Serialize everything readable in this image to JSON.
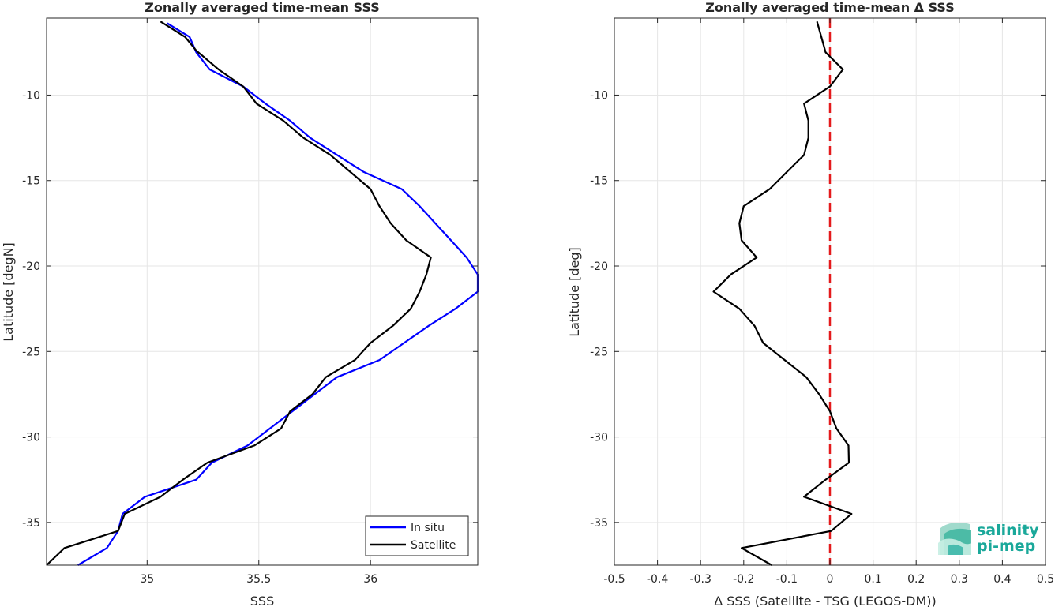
{
  "chart_data": [
    {
      "type": "line",
      "title": "Zonally averaged time-mean SSS",
      "xlabel": "SSS",
      "ylabel": "Latitude [degN]",
      "xlim": [
        34.55,
        36.48
      ],
      "ylim": [
        -37.5,
        -5.5
      ],
      "xticks": [
        35,
        35.5,
        36
      ],
      "xtick_labels": [
        "35",
        "35.5",
        "36"
      ],
      "yticks": [
        -35,
        -30,
        -25,
        -20,
        -15,
        -10
      ],
      "ytick_labels": [
        "-35",
        "-30",
        "-25",
        "-20",
        "-15",
        "-10"
      ],
      "grid": true,
      "legend_position": "bottom-right",
      "series": [
        {
          "name": "In situ",
          "color": "#0000ff",
          "points": [
            [
              35.09,
              -5.8
            ],
            [
              35.19,
              -6.6
            ],
            [
              35.22,
              -7.5
            ],
            [
              35.28,
              -8.5
            ],
            [
              35.43,
              -9.5
            ],
            [
              35.53,
              -10.5
            ],
            [
              35.64,
              -11.5
            ],
            [
              35.73,
              -12.5
            ],
            [
              35.85,
              -13.5
            ],
            [
              35.97,
              -14.5
            ],
            [
              36.14,
              -15.5
            ],
            [
              36.22,
              -16.5
            ],
            [
              36.29,
              -17.5
            ],
            [
              36.36,
              -18.5
            ],
            [
              36.43,
              -19.5
            ],
            [
              36.48,
              -20.5
            ],
            [
              36.48,
              -21.5
            ],
            [
              36.38,
              -22.5
            ],
            [
              36.26,
              -23.5
            ],
            [
              36.15,
              -24.5
            ],
            [
              36.04,
              -25.5
            ],
            [
              35.85,
              -26.5
            ],
            [
              35.75,
              -27.5
            ],
            [
              35.65,
              -28.5
            ],
            [
              35.55,
              -29.5
            ],
            [
              35.45,
              -30.5
            ],
            [
              35.29,
              -31.5
            ],
            [
              35.22,
              -32.5
            ],
            [
              34.99,
              -33.5
            ],
            [
              34.89,
              -34.5
            ],
            [
              34.87,
              -35.5
            ],
            [
              34.82,
              -36.5
            ],
            [
              34.69,
              -37.5
            ]
          ]
        },
        {
          "name": "Satellite",
          "color": "#000000",
          "points": [
            [
              35.06,
              -5.7
            ],
            [
              35.17,
              -6.6
            ],
            [
              35.22,
              -7.4
            ],
            [
              35.32,
              -8.5
            ],
            [
              35.43,
              -9.5
            ],
            [
              35.49,
              -10.5
            ],
            [
              35.61,
              -11.5
            ],
            [
              35.7,
              -12.5
            ],
            [
              35.82,
              -13.5
            ],
            [
              35.91,
              -14.5
            ],
            [
              36.0,
              -15.5
            ],
            [
              36.04,
              -16.5
            ],
            [
              36.09,
              -17.5
            ],
            [
              36.16,
              -18.5
            ],
            [
              36.27,
              -19.5
            ],
            [
              36.25,
              -20.5
            ],
            [
              36.22,
              -21.5
            ],
            [
              36.18,
              -22.5
            ],
            [
              36.1,
              -23.5
            ],
            [
              36.0,
              -24.5
            ],
            [
              35.93,
              -25.5
            ],
            [
              35.8,
              -26.5
            ],
            [
              35.74,
              -27.5
            ],
            [
              35.64,
              -28.5
            ],
            [
              35.6,
              -29.5
            ],
            [
              35.48,
              -30.5
            ],
            [
              35.27,
              -31.5
            ],
            [
              35.16,
              -32.5
            ],
            [
              35.06,
              -33.5
            ],
            [
              34.9,
              -34.5
            ],
            [
              34.87,
              -35.5
            ],
            [
              34.63,
              -36.5
            ],
            [
              34.55,
              -37.5
            ]
          ]
        }
      ]
    },
    {
      "type": "line",
      "title": "Zonally averaged time-mean Δ SSS",
      "xlabel": "Δ SSS (Satellite - TSG (LEGOS-DM))",
      "ylabel": "Latitude [deg]",
      "xlim": [
        -0.5,
        0.5
      ],
      "ylim": [
        -37.5,
        -5.5
      ],
      "xticks": [
        -0.5,
        -0.4,
        -0.3,
        -0.2,
        -0.1,
        0,
        0.1,
        0.2,
        0.3,
        0.4,
        0.5
      ],
      "xtick_labels": [
        "-0.5",
        "-0.4",
        "-0.3",
        "-0.2",
        "-0.1",
        "0",
        "0.1",
        "0.2",
        "0.3",
        "0.4",
        "0.5"
      ],
      "yticks": [
        -35,
        -30,
        -25,
        -20,
        -15,
        -10
      ],
      "ytick_labels": [
        "-35",
        "-30",
        "-25",
        "-20",
        "-15",
        "-10"
      ],
      "grid": true,
      "reference_line": {
        "x": 0,
        "color": "#e41a1c",
        "style": "dashed"
      },
      "series": [
        {
          "color": "#000000",
          "points": [
            [
              -0.03,
              -5.7
            ],
            [
              -0.02,
              -6.6
            ],
            [
              -0.01,
              -7.5
            ],
            [
              0.03,
              -8.5
            ],
            [
              0.0,
              -9.5
            ],
            [
              -0.06,
              -10.5
            ],
            [
              -0.05,
              -11.5
            ],
            [
              -0.05,
              -12.5
            ],
            [
              -0.06,
              -13.5
            ],
            [
              -0.1,
              -14.5
            ],
            [
              -0.14,
              -15.5
            ],
            [
              -0.2,
              -16.5
            ],
            [
              -0.21,
              -17.5
            ],
            [
              -0.205,
              -18.5
            ],
            [
              -0.17,
              -19.5
            ],
            [
              -0.23,
              -20.5
            ],
            [
              -0.27,
              -21.5
            ],
            [
              -0.21,
              -22.5
            ],
            [
              -0.175,
              -23.5
            ],
            [
              -0.155,
              -24.5
            ],
            [
              -0.105,
              -25.5
            ],
            [
              -0.055,
              -26.5
            ],
            [
              -0.025,
              -27.5
            ],
            [
              0.0,
              -28.5
            ],
            [
              0.015,
              -29.5
            ],
            [
              0.043,
              -30.5
            ],
            [
              0.044,
              -31.5
            ],
            [
              -0.01,
              -32.5
            ],
            [
              -0.06,
              -33.5
            ],
            [
              0.05,
              -34.5
            ],
            [
              0.003,
              -35.5
            ],
            [
              -0.205,
              -36.5
            ],
            [
              -0.135,
              -37.5
            ]
          ]
        }
      ]
    }
  ],
  "logo": {
    "line1": "salinity",
    "line2": "pi-mep",
    "color": "#1aa89a"
  }
}
